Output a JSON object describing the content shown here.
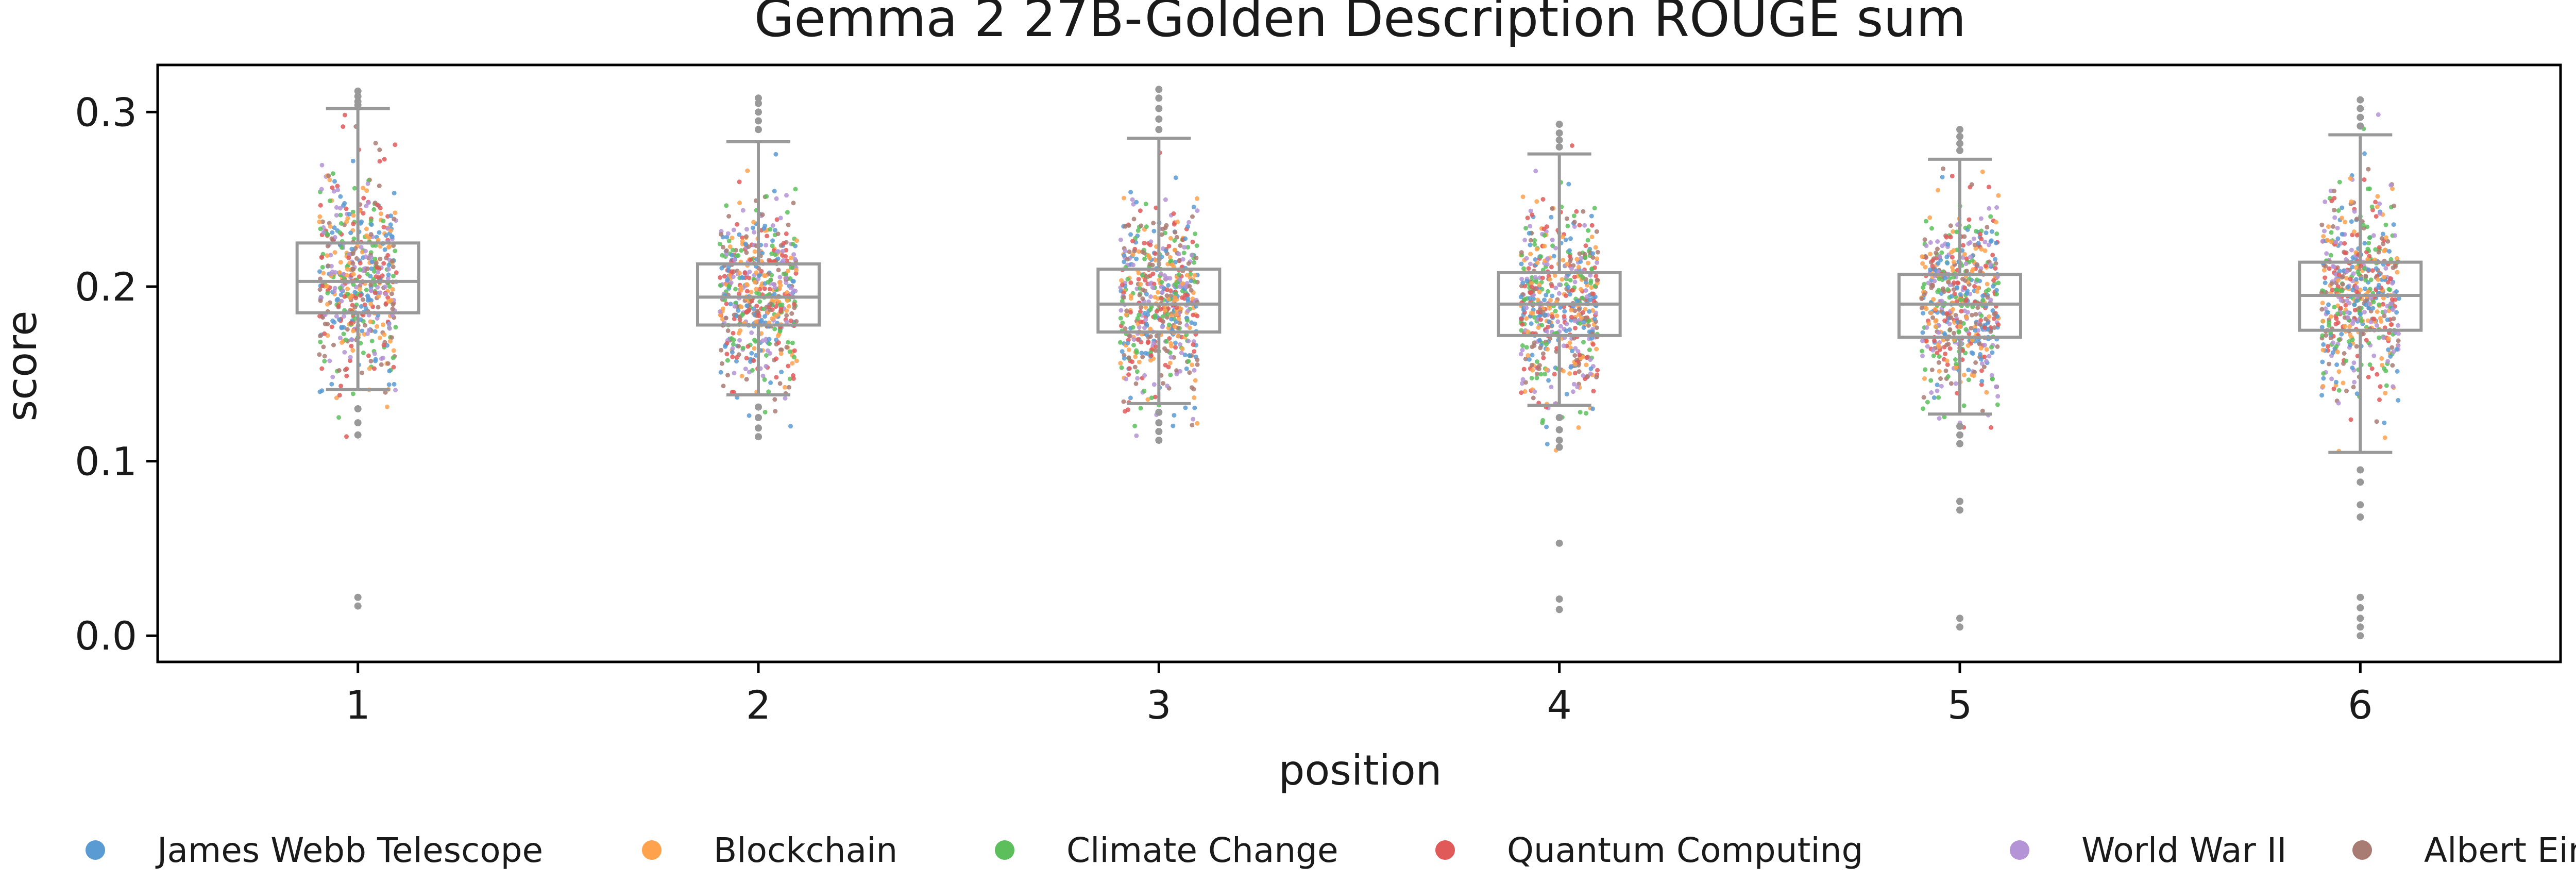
{
  "chart_data": {
    "type": "box+strip",
    "title": "Gemma 2 27B-Golden Description ROUGE sum",
    "xlabel": "position",
    "ylabel": "score",
    "ylim": [
      -0.015,
      0.327
    ],
    "yticks": [
      "0.0",
      "0.1",
      "0.2",
      "0.3"
    ],
    "ytick_values": [
      0.0,
      0.1,
      0.2,
      0.3
    ],
    "categories": [
      "1",
      "2",
      "3",
      "4",
      "5",
      "6"
    ],
    "box_color": "#999999",
    "grid": false,
    "legend_position": "bottom",
    "series": [
      {
        "name": "James Webb Telescope",
        "color": "#5a9bd4"
      },
      {
        "name": "Blockchain",
        "color": "#ffa24d"
      },
      {
        "name": "Climate Change",
        "color": "#5cbf5c"
      },
      {
        "name": "Quantum Computing",
        "color": "#e05a5a"
      },
      {
        "name": "World War II",
        "color": "#b494d6"
      },
      {
        "name": "Albert Einstein",
        "color": "#a97c73"
      }
    ],
    "boxes": [
      {
        "position": "1",
        "q1": 0.185,
        "median": 0.203,
        "q3": 0.225,
        "whisker_low": 0.141,
        "whisker_high": 0.302,
        "spread_low": 0.112,
        "spread_high": 0.312,
        "outliers": [
          0.304,
          0.306,
          0.309,
          0.312,
          0.13,
          0.122,
          0.115,
          0.022,
          0.017
        ]
      },
      {
        "position": "2",
        "q1": 0.178,
        "median": 0.194,
        "q3": 0.213,
        "whisker_low": 0.138,
        "whisker_high": 0.283,
        "spread_low": 0.113,
        "spread_high": 0.308,
        "outliers": [
          0.29,
          0.295,
          0.3,
          0.305,
          0.308,
          0.131,
          0.125,
          0.119,
          0.114
        ]
      },
      {
        "position": "3",
        "q1": 0.174,
        "median": 0.19,
        "q3": 0.21,
        "whisker_low": 0.133,
        "whisker_high": 0.285,
        "spread_low": 0.112,
        "spread_high": 0.313,
        "outliers": [
          0.29,
          0.296,
          0.302,
          0.308,
          0.313,
          0.128,
          0.122,
          0.117,
          0.112
        ]
      },
      {
        "position": "4",
        "q1": 0.172,
        "median": 0.19,
        "q3": 0.208,
        "whisker_low": 0.132,
        "whisker_high": 0.276,
        "spread_low": 0.105,
        "spread_high": 0.294,
        "outliers": [
          0.28,
          0.284,
          0.288,
          0.293,
          0.125,
          0.118,
          0.112,
          0.108,
          0.053,
          0.021,
          0.015
        ]
      },
      {
        "position": "5",
        "q1": 0.171,
        "median": 0.19,
        "q3": 0.207,
        "whisker_low": 0.127,
        "whisker_high": 0.273,
        "spread_low": 0.11,
        "spread_high": 0.29,
        "outliers": [
          0.278,
          0.282,
          0.286,
          0.29,
          0.12,
          0.115,
          0.11,
          0.077,
          0.072,
          0.01,
          0.005
        ]
      },
      {
        "position": "6",
        "q1": 0.175,
        "median": 0.195,
        "q3": 0.214,
        "whisker_low": 0.105,
        "whisker_high": 0.287,
        "spread_low": 0.105,
        "spread_high": 0.308,
        "outliers": [
          0.292,
          0.297,
          0.302,
          0.307,
          0.095,
          0.088,
          0.075,
          0.068,
          0.022,
          0.016,
          0.01,
          0.005,
          0.0
        ]
      }
    ]
  }
}
